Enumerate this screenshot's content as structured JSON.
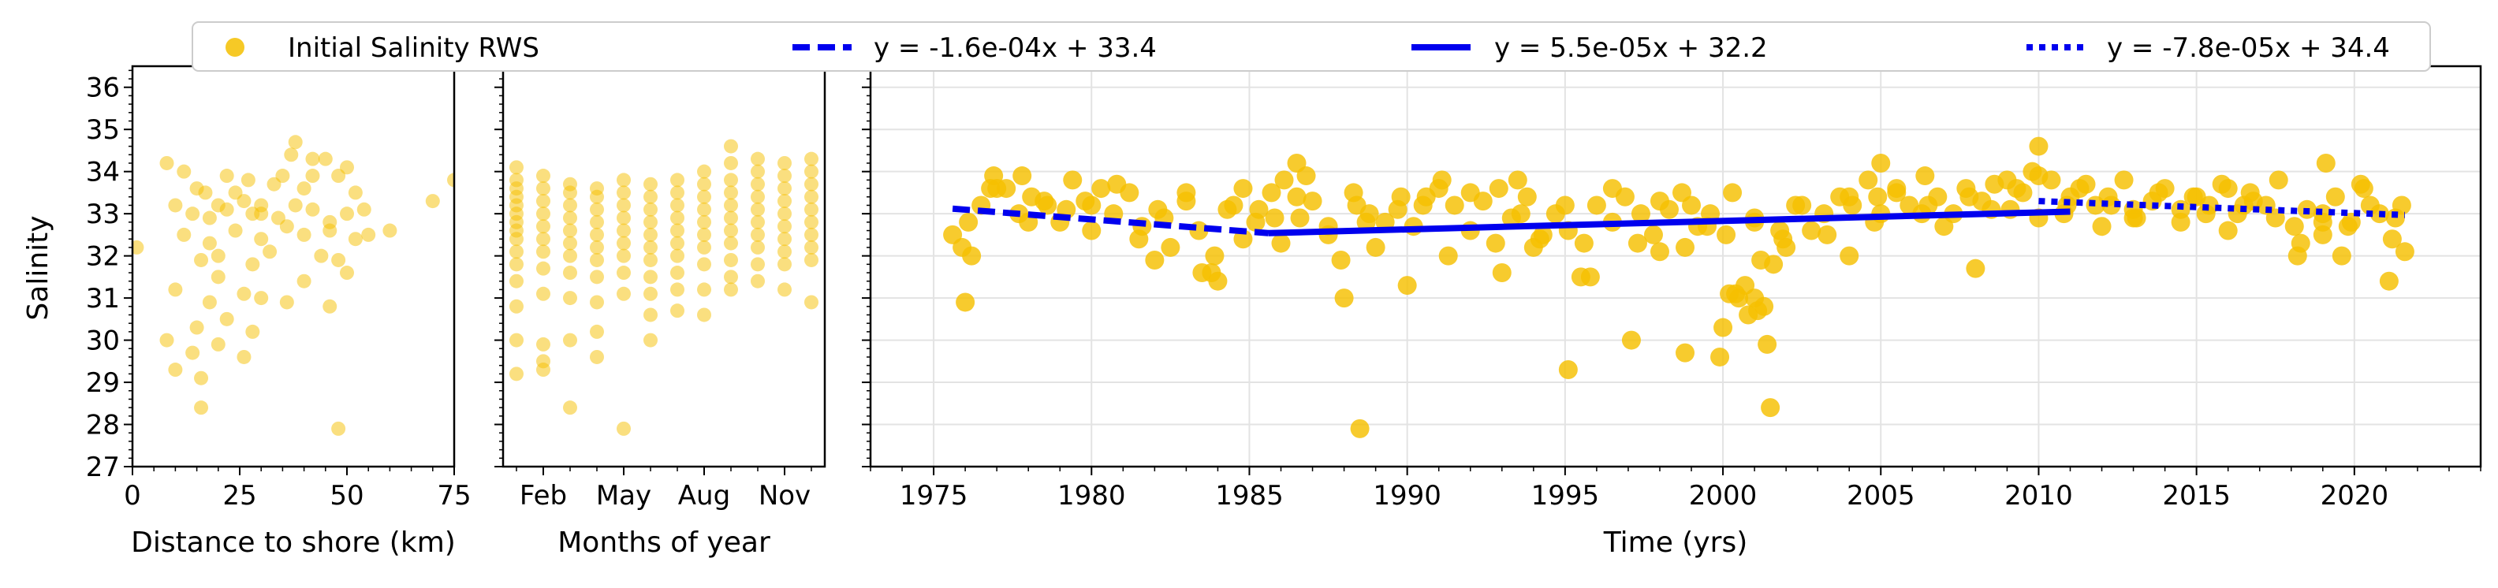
{
  "figure": {
    "shared_ylabel": "Salinity",
    "yticks": [
      27,
      28,
      29,
      30,
      31,
      32,
      33,
      34,
      35,
      36
    ]
  },
  "legend": {
    "items": [
      {
        "label": "Initial Salinity RWS",
        "kind": "marker",
        "color": "#f5c000"
      },
      {
        "label": "y = -1.6e-04x + 33.4",
        "kind": "dashed",
        "color": "#0000ee"
      },
      {
        "label": "y = 5.5e-05x + 32.2",
        "kind": "solid",
        "color": "#0000ee"
      },
      {
        "label": "y = -7.8e-05x + 34.4",
        "kind": "dotted",
        "color": "#0000ee"
      }
    ]
  },
  "colors": {
    "points": "#f5c000",
    "trend": "#0000ee",
    "grid": "#e3e3e3"
  },
  "chart_data": [
    {
      "type": "scatter",
      "xlabel": "Distance to shore (km)",
      "ylabel": "Salinity",
      "xlim": [
        0,
        75
      ],
      "ylim": [
        27,
        36.5
      ],
      "xticks": [
        0,
        25,
        50,
        75
      ],
      "xtick_labels": [
        "0",
        "25",
        "50",
        "75"
      ],
      "grid": false,
      "series": [
        {
          "name": "Initial Salinity RWS",
          "marker_size": 9,
          "opacity": 0.5,
          "x": [
            1,
            8,
            12,
            15,
            17,
            20,
            22,
            24,
            27,
            30,
            33,
            35,
            37,
            40,
            42,
            45,
            48,
            50,
            52,
            55,
            60,
            70,
            75,
            10,
            14,
            18,
            22,
            26,
            30,
            34,
            38,
            42,
            46,
            50,
            54,
            12,
            18,
            24,
            30,
            36,
            40,
            46,
            52,
            16,
            20,
            28,
            32,
            44,
            48,
            10,
            20,
            30,
            40,
            50,
            18,
            26,
            36,
            46,
            8,
            15,
            22,
            28,
            14,
            20,
            26,
            10,
            16,
            16,
            48,
            38,
            42,
            28
          ],
          "y": [
            32.2,
            34.2,
            34.0,
            33.6,
            33.5,
            33.2,
            33.9,
            33.5,
            33.8,
            33.2,
            33.7,
            33.9,
            34.4,
            33.6,
            33.9,
            34.3,
            33.9,
            34.1,
            33.5,
            32.5,
            32.6,
            33.3,
            33.8,
            33.2,
            33.0,
            32.9,
            33.1,
            33.3,
            33.0,
            32.9,
            33.2,
            33.1,
            32.8,
            33.0,
            33.1,
            32.5,
            32.3,
            32.6,
            32.4,
            32.7,
            32.5,
            32.6,
            32.4,
            31.9,
            32.0,
            31.8,
            32.1,
            32.0,
            31.9,
            31.2,
            31.5,
            31.0,
            31.4,
            31.6,
            30.9,
            31.1,
            30.9,
            30.8,
            30.0,
            30.3,
            30.5,
            30.2,
            29.7,
            29.9,
            29.6,
            29.3,
            29.1,
            28.4,
            27.9,
            34.7,
            34.3,
            33.0
          ]
        }
      ]
    },
    {
      "type": "scatter",
      "xlabel": "Months of year",
      "ylabel": "",
      "xlim": [
        0.5,
        12.5
      ],
      "ylim": [
        27,
        36.5
      ],
      "xticks": [
        2,
        5,
        8,
        11
      ],
      "xtick_labels": [
        "Feb",
        "May",
        "Aug",
        "Nov"
      ],
      "grid": false,
      "series": [
        {
          "name": "Initial Salinity RWS",
          "marker_size": 9,
          "opacity": 0.5,
          "x": [
            1,
            1,
            1,
            1,
            1,
            1,
            1,
            1,
            1,
            1,
            1,
            1,
            1,
            1,
            1,
            2,
            2,
            2,
            2,
            2,
            2,
            2,
            2,
            2,
            2,
            2,
            2,
            3,
            3,
            3,
            3,
            3,
            3,
            3,
            3,
            3,
            3,
            3,
            4,
            4,
            4,
            4,
            4,
            4,
            4,
            4,
            4,
            4,
            4,
            5,
            5,
            5,
            5,
            5,
            5,
            5,
            5,
            5,
            5,
            6,
            6,
            6,
            6,
            6,
            6,
            6,
            6,
            6,
            6,
            6,
            7,
            7,
            7,
            7,
            7,
            7,
            7,
            7,
            7,
            7,
            8,
            8,
            8,
            8,
            8,
            8,
            8,
            8,
            8,
            8,
            9,
            9,
            9,
            9,
            9,
            9,
            9,
            9,
            9,
            9,
            9,
            10,
            10,
            10,
            10,
            10,
            10,
            10,
            10,
            10,
            10,
            11,
            11,
            11,
            11,
            11,
            11,
            11,
            11,
            11,
            11,
            12,
            12,
            12,
            12,
            12,
            12,
            12,
            12,
            12,
            12
          ],
          "y": [
            34.1,
            33.8,
            33.6,
            33.4,
            33.2,
            33.0,
            32.8,
            32.6,
            32.4,
            32.1,
            31.8,
            31.4,
            30.8,
            30.0,
            29.2,
            33.9,
            33.6,
            33.3,
            33.0,
            32.7,
            32.4,
            32.1,
            31.7,
            31.1,
            29.9,
            29.5,
            29.3,
            33.7,
            33.5,
            33.2,
            32.9,
            32.6,
            32.3,
            32.0,
            31.6,
            31.0,
            30.0,
            28.4,
            33.6,
            33.4,
            33.1,
            32.8,
            32.5,
            32.2,
            31.9,
            31.5,
            30.9,
            30.2,
            29.6,
            33.8,
            33.5,
            33.2,
            32.9,
            32.6,
            32.3,
            32.0,
            31.6,
            31.1,
            27.9,
            33.7,
            33.4,
            33.1,
            32.8,
            32.5,
            32.2,
            31.9,
            31.5,
            31.1,
            30.6,
            30.0,
            33.8,
            33.5,
            33.2,
            32.9,
            32.6,
            32.3,
            32.0,
            31.6,
            31.2,
            30.7,
            34.0,
            33.7,
            33.4,
            33.1,
            32.8,
            32.5,
            32.2,
            31.8,
            31.2,
            30.6,
            34.6,
            34.2,
            33.8,
            33.5,
            33.2,
            32.9,
            32.6,
            32.3,
            31.9,
            31.5,
            31.2,
            34.3,
            34.0,
            33.7,
            33.4,
            33.1,
            32.8,
            32.5,
            32.2,
            31.8,
            31.4,
            34.2,
            33.9,
            33.6,
            33.3,
            33.0,
            32.7,
            32.4,
            32.1,
            31.8,
            31.2,
            34.3,
            34.0,
            33.7,
            33.4,
            33.1,
            32.8,
            32.5,
            32.2,
            31.9,
            30.9
          ]
        }
      ]
    },
    {
      "type": "scatter",
      "xlabel": "Time (yrs)",
      "ylabel": "",
      "xlim": [
        1973,
        2024
      ],
      "ylim": [
        27,
        36.5
      ],
      "xticks": [
        1975,
        1980,
        1985,
        1990,
        1995,
        2000,
        2005,
        2010,
        2015,
        2020
      ],
      "xtick_labels": [
        "1975",
        "1980",
        "1985",
        "1990",
        "1995",
        "2000",
        "2005",
        "2010",
        "2015",
        "2020"
      ],
      "grid": true,
      "series": [
        {
          "name": "Initial Salinity RWS",
          "marker_size": 12,
          "opacity": 0.82,
          "x": [
            1975.6,
            1975.9,
            1976.1,
            1976.5,
            1976.9,
            1977.3,
            1977.7,
            1978.1,
            1978.6,
            1979.0,
            1979.4,
            1979.8,
            1980.3,
            1980.7,
            1981.2,
            1981.6,
            1982.1,
            1982.5,
            1983.0,
            1983.4,
            1983.9,
            1984.3,
            1984.8,
            1985.2,
            1985.7,
            1986.1,
            1986.6,
            1987.0,
            1987.5,
            1987.9,
            1988.4,
            1988.8,
            1989.3,
            1989.7,
            1990.2,
            1990.6,
            1991.1,
            1991.5,
            1992.0,
            1992.4,
            1992.9,
            1993.3,
            1993.8,
            1994.2,
            1994.7,
            1995.1,
            1995.6,
            1996.0,
            1996.5,
            1996.9,
            1997.4,
            1997.8,
            1998.3,
            1998.7,
            1999.2,
            1999.6,
            2000.1,
            2000.4,
            2000.7,
            2001.0,
            2001.3,
            2001.6,
            2001.9,
            2002.3,
            2002.8,
            2003.2,
            2003.7,
            2004.1,
            2004.6,
            2005.0,
            2005.5,
            2005.9,
            2006.4,
            2006.8,
            2007.3,
            2007.7,
            2008.2,
            2008.6,
            2009.1,
            2009.5,
            2010.0,
            2010.4,
            2010.9,
            2011.3,
            2011.8,
            2012.2,
            2012.7,
            2013.1,
            2013.6,
            2014.0,
            2014.5,
            2014.9,
            2015.4,
            2015.8,
            2016.3,
            2016.7,
            2017.2,
            2017.6,
            2018.1,
            2018.5,
            2019.0,
            2019.4,
            2019.9,
            2020.3,
            2020.8,
            2021.2,
            2021.6,
            1976.2,
            1977.0,
            1977.8,
            1978.5,
            1979.2,
            1980.0,
            1980.8,
            1981.5,
            1982.3,
            1983.0,
            1983.8,
            1984.5,
            1985.3,
            1986.0,
            1986.8,
            1987.5,
            1988.3,
            1989.0,
            1989.8,
            1990.5,
            1991.3,
            1992.0,
            1992.8,
            1993.5,
            1994.3,
            1995.0,
            1995.8,
            1996.5,
            1997.3,
            1998.0,
            1998.8,
            1999.5,
            2000.3,
            2001.0,
            2001.8,
            2002.5,
            2003.3,
            2004.0,
            2004.8,
            2005.5,
            2006.3,
            2007.0,
            2007.8,
            2008.5,
            2009.3,
            2010.0,
            2010.8,
            2011.5,
            2012.3,
            2013.0,
            2013.8,
            2014.5,
            2015.3,
            2016.0,
            2016.8,
            2017.5,
            2018.3,
            2019.0,
            2019.8,
            2020.5,
            2021.3,
            1976.0,
            1978.0,
            1980.0,
            1982.0,
            1983.5,
            1984.0,
            1985.8,
            1986.5,
            1988.0,
            1988.5,
            1990.0,
            1991.0,
            1993.0,
            1994.0,
            1995.1,
            1995.5,
            1997.1,
            1998.0,
            1998.8,
            1999.9,
            2000.0,
            2000.2,
            2000.5,
            2000.8,
            2001.1,
            2001.2,
            2001.4,
            2001.5,
            2002.0,
            2004.0,
            2005.0,
            2006.5,
            2008.0,
            2009.0,
            2010.0,
            2011.0,
            2013.0,
            2015.0,
            2016.0,
            2018.2,
            2019.1,
            2019.6,
            2020.2,
            2021.1,
            2021.5,
            1976.8,
            1984.8,
            1986.5,
            1988.7,
            1993.6,
            1999.0,
            2001.0,
            2004.9,
            2009.8,
            2012.0,
            2016.5,
            2019.0
          ],
          "y": [
            32.5,
            32.2,
            32.8,
            33.2,
            33.9,
            33.6,
            33.0,
            33.4,
            33.2,
            32.8,
            33.8,
            33.3,
            33.6,
            33.0,
            33.5,
            32.7,
            33.1,
            32.2,
            33.3,
            32.6,
            32.0,
            33.1,
            33.6,
            32.8,
            33.5,
            33.8,
            32.9,
            33.3,
            32.7,
            31.9,
            33.2,
            33.0,
            32.8,
            33.1,
            32.7,
            33.4,
            33.8,
            33.2,
            32.6,
            33.3,
            33.6,
            32.9,
            33.4,
            32.4,
            33.0,
            32.6,
            32.3,
            33.2,
            32.8,
            33.4,
            33.0,
            32.5,
            33.1,
            33.5,
            32.7,
            33.0,
            32.5,
            31.1,
            31.3,
            31.0,
            30.8,
            31.8,
            32.4,
            33.2,
            32.6,
            33.0,
            33.4,
            33.2,
            33.8,
            33.0,
            33.6,
            33.2,
            33.9,
            33.4,
            33.0,
            33.6,
            33.3,
            33.7,
            33.1,
            33.5,
            32.9,
            33.8,
            33.2,
            33.6,
            33.2,
            33.4,
            33.8,
            32.9,
            33.3,
            33.6,
            32.8,
            33.4,
            33.2,
            33.7,
            33.0,
            33.5,
            33.2,
            33.8,
            32.7,
            33.1,
            32.5,
            33.4,
            32.8,
            33.6,
            33.0,
            32.4,
            32.1,
            32.0,
            33.6,
            33.9,
            33.3,
            33.1,
            32.6,
            33.7,
            32.4,
            32.9,
            33.5,
            31.6,
            33.2,
            33.1,
            32.3,
            33.9,
            32.5,
            33.5,
            32.2,
            33.4,
            33.2,
            32.0,
            33.5,
            32.3,
            33.8,
            32.5,
            33.2,
            31.5,
            33.6,
            32.3,
            33.3,
            32.2,
            32.7,
            33.5,
            32.9,
            32.6,
            33.2,
            32.5,
            33.4,
            32.8,
            33.5,
            33.0,
            32.7,
            33.4,
            33.1,
            33.6,
            33.9,
            33.0,
            33.7,
            33.2,
            32.9,
            33.5,
            33.1,
            33.0,
            32.6,
            33.3,
            32.9,
            32.3,
            33.0,
            32.7,
            33.2,
            32.9,
            30.9,
            32.8,
            33.2,
            31.9,
            31.6,
            31.4,
            32.9,
            34.2,
            31.0,
            27.9,
            31.3,
            33.6,
            31.6,
            32.2,
            29.3,
            31.5,
            30.0,
            32.1,
            29.7,
            29.6,
            30.3,
            31.1,
            31.0,
            30.6,
            30.7,
            31.9,
            29.9,
            28.4,
            32.2,
            32.0,
            34.2,
            33.2,
            31.7,
            33.8,
            34.6,
            33.4,
            33.1,
            33.4,
            33.6,
            32.0,
            34.2,
            32.0,
            33.7,
            31.4,
            33.2,
            33.6,
            32.4,
            33.4,
            32.8,
            33.0,
            33.2,
            32.8,
            33.4,
            34.0,
            32.7,
            33.2,
            32.8
          ]
        },
        {
          "name": "y = -1.6e-04x + 33.4",
          "style": "dashed",
          "x": [
            1975.6,
            1985.6
          ],
          "y": [
            33.12,
            32.54
          ]
        },
        {
          "name": "y = 5.5e-05x + 32.2",
          "style": "solid",
          "x": [
            1985.6,
            2011.0
          ],
          "y": [
            32.54,
            33.05
          ]
        },
        {
          "name": "y = -7.8e-05x + 34.4",
          "style": "dotted",
          "x": [
            2010.0,
            2021.6
          ],
          "y": [
            33.3,
            32.97
          ]
        }
      ]
    }
  ]
}
